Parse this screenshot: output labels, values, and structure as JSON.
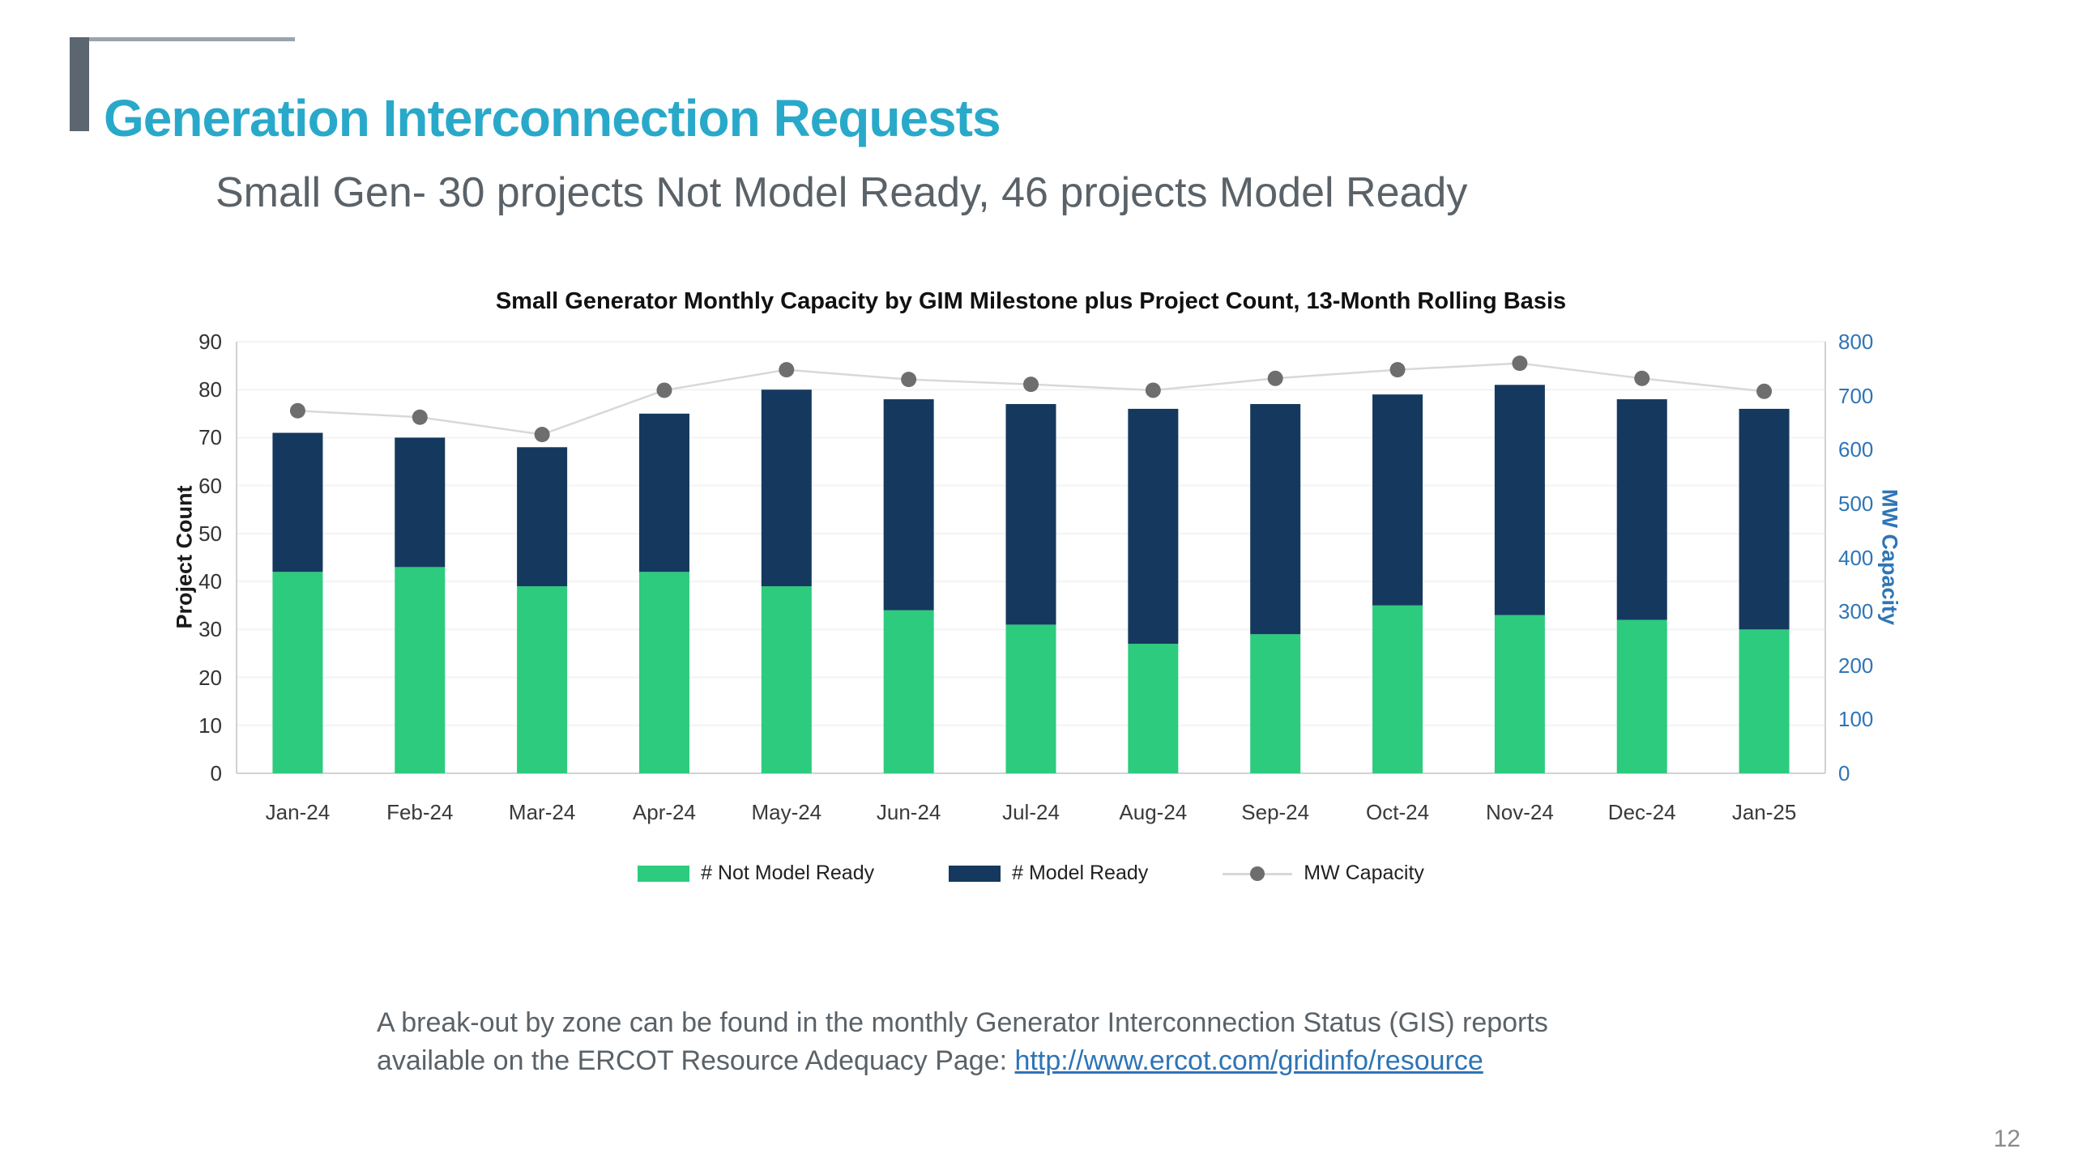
{
  "slide": {
    "title": "Generation Interconnection Requests",
    "subtitle": "Small Gen- 30 projects Not Model Ready, 46 projects Model Ready",
    "page_number": "12",
    "footer": {
      "line1": "A break-out by zone can be found in the monthly Generator Interconnection Status (GIS) reports",
      "line2_prefix": "available on the ERCOT Resource Adequacy Page: ",
      "link_text": "http://www.ercot.com/gridinfo/resource"
    }
  },
  "colors": {
    "title_teal": "#29a9ca",
    "accent_bar_gray": "#5b6670",
    "accent_line_gray": "#99a4ab",
    "not_model_ready_green": "#2dcb7d",
    "model_ready_navy": "#15395e",
    "mw_line_gray": "#d8d8d8",
    "mw_dot_gray": "#6e6e6e",
    "right_axis_blue": "#2e75b6",
    "link_blue": "#2e74b5",
    "text_gray": "#5a6268",
    "gridline": "#f3f3f3",
    "plot_border": "#d2d2d2"
  },
  "chart_data": {
    "type": "bar",
    "subtype": "stacked-bars-with-line-overlay",
    "title": "Small Generator Monthly Capacity by GIM Milestone plus Project Count, 13-Month Rolling Basis",
    "categories": [
      "Jan-24",
      "Feb-24",
      "Mar-24",
      "Apr-24",
      "May-24",
      "Jun-24",
      "Jul-24",
      "Aug-24",
      "Sep-24",
      "Oct-24",
      "Nov-24",
      "Dec-24",
      "Jan-25"
    ],
    "series": [
      {
        "name": "# Not Model Ready",
        "type": "bar",
        "stack": "projects",
        "axis": "left",
        "color": "#2dcb7d",
        "values": [
          42,
          43,
          39,
          42,
          39,
          34,
          31,
          27,
          29,
          35,
          33,
          32,
          30
        ]
      },
      {
        "name": "# Model Ready",
        "type": "bar",
        "stack": "projects",
        "axis": "left",
        "color": "#15395e",
        "values": [
          29,
          27,
          29,
          33,
          41,
          44,
          46,
          49,
          48,
          44,
          48,
          46,
          46
        ]
      },
      {
        "name": "MW Capacity",
        "type": "line",
        "axis": "right",
        "color": "#6e6e6e",
        "values": [
          672,
          660,
          628,
          710,
          748,
          730,
          721,
          710,
          732,
          748,
          760,
          732,
          708
        ]
      }
    ],
    "stacked_totals": [
      71,
      70,
      68,
      75,
      80,
      78,
      77,
      76,
      77,
      79,
      81,
      78,
      76
    ],
    "left_axis": {
      "label": "Project Count",
      "min": 0,
      "max": 90,
      "ticks": [
        0,
        10,
        20,
        30,
        40,
        50,
        60,
        70,
        80,
        90
      ]
    },
    "right_axis": {
      "label": "MW Capacity",
      "min": 0,
      "max": 800,
      "ticks": [
        0,
        100,
        200,
        300,
        400,
        500,
        600,
        700,
        800
      ]
    },
    "legend_position": "bottom",
    "grid": true
  }
}
